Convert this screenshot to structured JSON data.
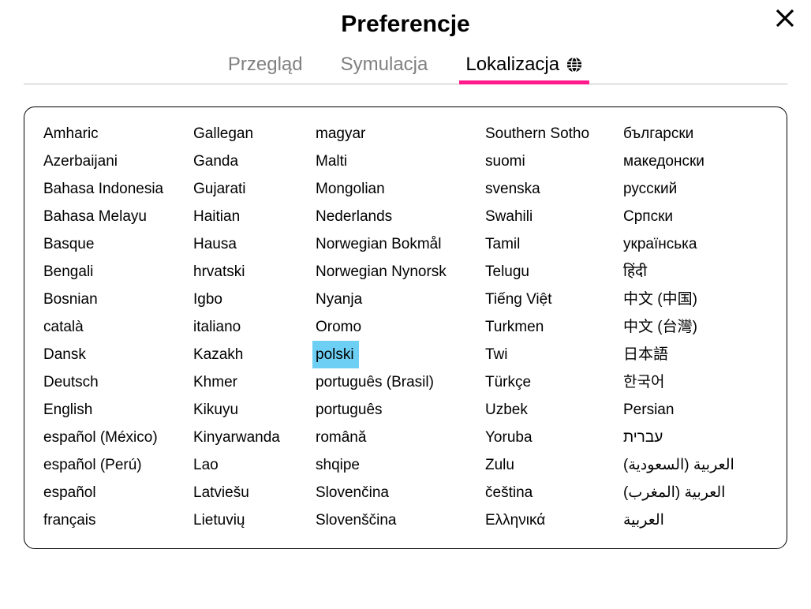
{
  "colors": {
    "accent": "#ff1a8c",
    "highlight": "#6ecff5",
    "border": "#bfbfbf",
    "text": "#000000",
    "muted": "#808080",
    "background": "#ffffff"
  },
  "title": "Preferencje",
  "tabs": [
    {
      "label": "Przegląd",
      "active": false
    },
    {
      "label": "Symulacja",
      "active": false
    },
    {
      "label": "Lokalizacja",
      "active": true,
      "icon": "globe"
    }
  ],
  "selected_language": "polski",
  "languages": {
    "col1": [
      "Amharic",
      "Azerbaijani",
      "Bahasa Indonesia",
      "Bahasa Melayu",
      "Basque",
      "Bengali",
      "Bosnian",
      "català",
      "Dansk",
      "Deutsch",
      "English",
      "español (México)",
      "español (Perú)",
      "español",
      "français"
    ],
    "col2": [
      "Gallegan",
      "Ganda",
      "Gujarati",
      "Haitian",
      "Hausa",
      "hrvatski",
      "Igbo",
      "italiano",
      "Kazakh",
      "Khmer",
      "Kikuyu",
      "Kinyarwanda",
      "Lao",
      "Latviešu",
      "Lietuvių"
    ],
    "col3": [
      "magyar",
      "Malti",
      "Mongolian",
      "Nederlands",
      "Norwegian Bokmål",
      "Norwegian Nynorsk",
      "Nyanja",
      "Oromo",
      "polski",
      "português (Brasil)",
      "português",
      "română",
      "shqipe",
      "Slovenčina",
      "Slovenščina"
    ],
    "col4": [
      "Southern Sotho",
      "suomi",
      "svenska",
      "Swahili",
      "Tamil",
      "Telugu",
      "Tiếng Việt",
      "Turkmen",
      "Twi",
      "Türkçe",
      "Uzbek",
      "Yoruba",
      "Zulu",
      "čeština",
      "Ελληνικά"
    ],
    "col5": [
      "български",
      "македонски",
      "русский",
      "Српски",
      "українська",
      "हिंदी",
      "中文 (中国)",
      "中文 (台灣)",
      "日本語",
      "한국어",
      "Persian",
      "עברית",
      "العربية (السعودية)",
      "العربية (المغرب)",
      "العربية"
    ]
  }
}
